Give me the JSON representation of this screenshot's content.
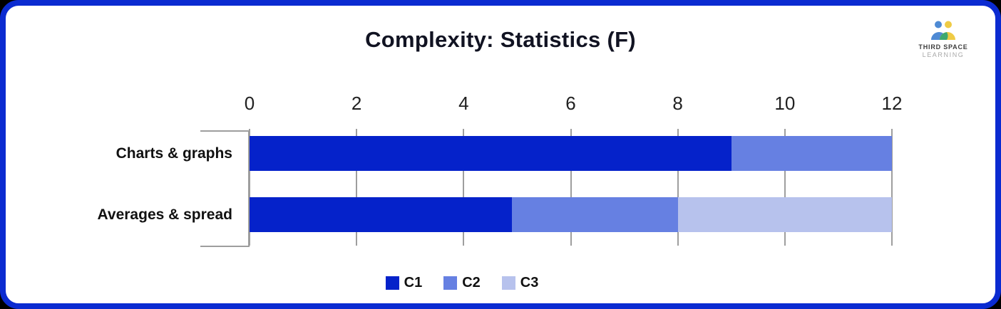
{
  "header": {
    "title": "Complexity: Statistics (F)"
  },
  "logo": {
    "line1": "THIRD SPACE",
    "line2": "LEARNING",
    "icon_colors": {
      "blue": "#4E8AD4",
      "yellow": "#EFCB45",
      "green": "#3EA86F"
    }
  },
  "chart_data": {
    "type": "bar",
    "orientation": "horizontal",
    "stacked": true,
    "title": "Complexity: Statistics (F)",
    "categories": [
      "Charts & graphs",
      "Averages & spread"
    ],
    "series": [
      {
        "name": "C1",
        "color": "#0522CA",
        "values": [
          9,
          4.9
        ]
      },
      {
        "name": "C2",
        "color": "#6680E2",
        "values": [
          3,
          3.1
        ]
      },
      {
        "name": "C3",
        "color": "#B7C2ED",
        "values": [
          0,
          4
        ]
      }
    ],
    "xlim": [
      0,
      12
    ],
    "xticks": [
      0,
      2,
      4,
      6,
      8,
      10,
      12
    ],
    "x_tick_labels": [
      "0",
      "2",
      "4",
      "6",
      "8",
      "10",
      "12"
    ],
    "legend_position": "bottom",
    "legend_labels": [
      "C1",
      "C2",
      "C3"
    ],
    "grid": true,
    "gridline_color": "#9E9E9E",
    "axis_color": "#9E9E9E",
    "card_border_color": "#0B2BD1"
  }
}
